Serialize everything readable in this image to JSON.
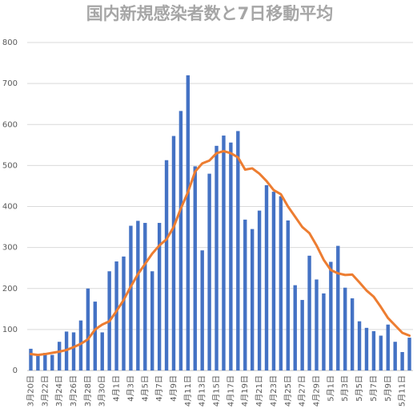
{
  "chart_data": {
    "type": "bar-line",
    "title": "国内新規感染者数と7日移動平均",
    "categories": [
      "3月20日",
      null,
      "3月22日",
      null,
      "3月24日",
      null,
      "3月26日",
      null,
      "3月28日",
      null,
      "3月30日",
      null,
      "4月1日",
      null,
      "4月3日",
      null,
      "4月5日",
      null,
      "4月7日",
      null,
      "4月9日",
      null,
      "4月11日",
      null,
      "4月13日",
      null,
      "4月15日",
      null,
      "4月17日",
      null,
      "4月19日",
      null,
      "4月21日",
      null,
      "4月23日",
      null,
      "4月25日",
      null,
      "4月27日",
      null,
      "4月29日",
      null,
      "5月1日",
      null,
      "5月3日",
      null,
      "5月5日",
      null,
      "5月7日",
      null,
      "5月9日",
      null,
      "5月11日",
      null
    ],
    "series": [
      {
        "type": "bar",
        "color": "#4472c4",
        "values": [
          53,
          40,
          43,
          38,
          70,
          95,
          93,
          122,
          200,
          168,
          93,
          242,
          266,
          278,
          353,
          365,
          360,
          242,
          360,
          513,
          572,
          633,
          720,
          498,
          293,
          480,
          548,
          573,
          556,
          584,
          368,
          345,
          390,
          452,
          436,
          425,
          366,
          208,
          172,
          280,
          222,
          188,
          265,
          304,
          202,
          176,
          120,
          104,
          96,
          85,
          112,
          70,
          45,
          80
        ]
      },
      {
        "type": "line",
        "color": "#ed7d31",
        "values": [
          40,
          38,
          40,
          43,
          46,
          50,
          57,
          65,
          76,
          100,
          112,
          120,
          145,
          172,
          205,
          235,
          260,
          285,
          305,
          320,
          350,
          395,
          435,
          485,
          505,
          512,
          530,
          535,
          530,
          520,
          490,
          493,
          480,
          462,
          440,
          430,
          400,
          375,
          350,
          335,
          305,
          270,
          245,
          237,
          233,
          234,
          215,
          195,
          180,
          155,
          128,
          110,
          92,
          85
        ]
      }
    ],
    "ylim": [
      0,
      800
    ],
    "yticks": [
      0,
      100,
      200,
      300,
      400,
      500,
      600,
      700,
      800
    ],
    "grid": true
  }
}
